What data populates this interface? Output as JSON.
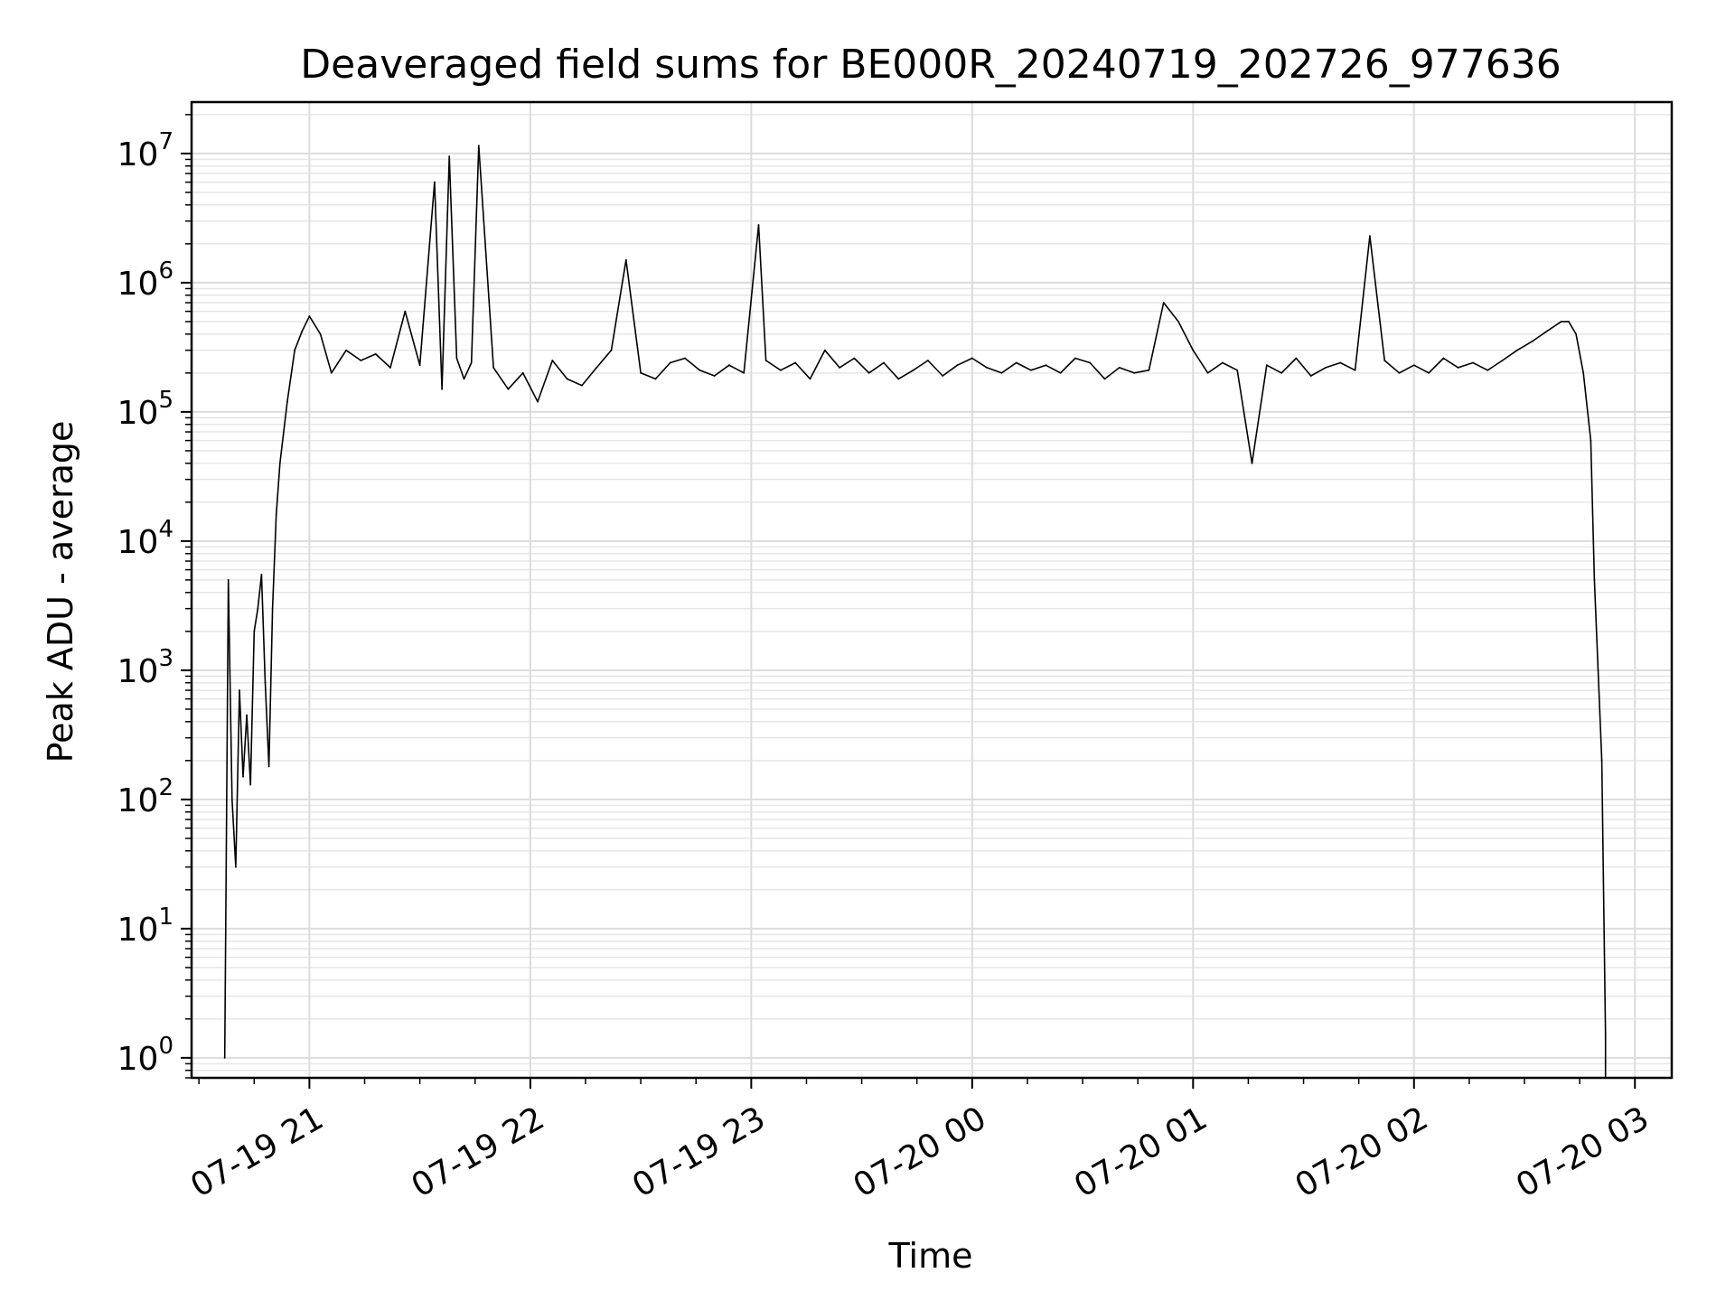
{
  "chart_data": {
    "type": "line",
    "title": "Deaveraged field sums for BE000R_20240719_202726_977636",
    "xlabel": "Time",
    "ylabel": "Peak ADU - average",
    "yscale": "log",
    "ylim": [
      0.7,
      25000000
    ],
    "xlim": [
      "2024-07-19 20:28",
      "2024-07-20 03:10"
    ],
    "grid": true,
    "x_ticks": [
      {
        "value": "2024-07-19 21:00",
        "label": "07-19 21"
      },
      {
        "value": "2024-07-19 22:00",
        "label": "07-19 22"
      },
      {
        "value": "2024-07-19 23:00",
        "label": "07-19 23"
      },
      {
        "value": "2024-07-20 00:00",
        "label": "07-20 00"
      },
      {
        "value": "2024-07-20 01:00",
        "label": "07-20 01"
      },
      {
        "value": "2024-07-20 02:00",
        "label": "07-20 02"
      },
      {
        "value": "2024-07-20 03:00",
        "label": "07-20 03"
      }
    ],
    "y_ticks": [
      {
        "value": 1,
        "base": "10",
        "exp": "0"
      },
      {
        "value": 10,
        "base": "10",
        "exp": "1"
      },
      {
        "value": 100,
        "base": "10",
        "exp": "2"
      },
      {
        "value": 1000,
        "base": "10",
        "exp": "3"
      },
      {
        "value": 10000,
        "base": "10",
        "exp": "4"
      },
      {
        "value": 100000,
        "base": "10",
        "exp": "5"
      },
      {
        "value": 1000000,
        "base": "10",
        "exp": "6"
      },
      {
        "value": 10000000,
        "base": "10",
        "exp": "7"
      }
    ],
    "series": [
      {
        "color": "#000000",
        "x": [
          "2024-07-19 20:37",
          "2024-07-19 20:38",
          "2024-07-19 20:39",
          "2024-07-19 20:40",
          "2024-07-19 20:41",
          "2024-07-19 20:42",
          "2024-07-19 20:43",
          "2024-07-19 20:44",
          "2024-07-19 20:45",
          "2024-07-19 20:46",
          "2024-07-19 20:47",
          "2024-07-19 20:48",
          "2024-07-19 20:49",
          "2024-07-19 20:50",
          "2024-07-19 20:51",
          "2024-07-19 20:52",
          "2024-07-19 20:54",
          "2024-07-19 20:56",
          "2024-07-19 20:58",
          "2024-07-19 21:00",
          "2024-07-19 21:03",
          "2024-07-19 21:06",
          "2024-07-19 21:10",
          "2024-07-19 21:14",
          "2024-07-19 21:18",
          "2024-07-19 21:22",
          "2024-07-19 21:26",
          "2024-07-19 21:30",
          "2024-07-19 21:34",
          "2024-07-19 21:36",
          "2024-07-19 21:38",
          "2024-07-19 21:40",
          "2024-07-19 21:42",
          "2024-07-19 21:44",
          "2024-07-19 21:46",
          "2024-07-19 21:50",
          "2024-07-19 21:54",
          "2024-07-19 21:58",
          "2024-07-19 22:02",
          "2024-07-19 22:06",
          "2024-07-19 22:10",
          "2024-07-19 22:14",
          "2024-07-19 22:18",
          "2024-07-19 22:22",
          "2024-07-19 22:26",
          "2024-07-19 22:30",
          "2024-07-19 22:34",
          "2024-07-19 22:38",
          "2024-07-19 22:42",
          "2024-07-19 22:46",
          "2024-07-19 22:50",
          "2024-07-19 22:54",
          "2024-07-19 22:58",
          "2024-07-19 23:02",
          "2024-07-19 23:04",
          "2024-07-19 23:08",
          "2024-07-19 23:12",
          "2024-07-19 23:16",
          "2024-07-19 23:20",
          "2024-07-19 23:24",
          "2024-07-19 23:28",
          "2024-07-19 23:32",
          "2024-07-19 23:36",
          "2024-07-19 23:40",
          "2024-07-19 23:44",
          "2024-07-19 23:48",
          "2024-07-19 23:52",
          "2024-07-19 23:56",
          "2024-07-20 00:00",
          "2024-07-20 00:04",
          "2024-07-20 00:08",
          "2024-07-20 00:12",
          "2024-07-20 00:16",
          "2024-07-20 00:20",
          "2024-07-20 00:24",
          "2024-07-20 00:28",
          "2024-07-20 00:32",
          "2024-07-20 00:36",
          "2024-07-20 00:40",
          "2024-07-20 00:44",
          "2024-07-20 00:48",
          "2024-07-20 00:52",
          "2024-07-20 00:56",
          "2024-07-20 01:00",
          "2024-07-20 01:04",
          "2024-07-20 01:08",
          "2024-07-20 01:12",
          "2024-07-20 01:16",
          "2024-07-20 01:20",
          "2024-07-20 01:24",
          "2024-07-20 01:28",
          "2024-07-20 01:32",
          "2024-07-20 01:36",
          "2024-07-20 01:40",
          "2024-07-20 01:44",
          "2024-07-20 01:48",
          "2024-07-20 01:52",
          "2024-07-20 01:56",
          "2024-07-20 02:00",
          "2024-07-20 02:04",
          "2024-07-20 02:08",
          "2024-07-20 02:12",
          "2024-07-20 02:16",
          "2024-07-20 02:20",
          "2024-07-20 02:24",
          "2024-07-20 02:28",
          "2024-07-20 02:32",
          "2024-07-20 02:36",
          "2024-07-20 02:40",
          "2024-07-20 02:42",
          "2024-07-20 02:44",
          "2024-07-20 02:46",
          "2024-07-20 02:48",
          "2024-07-20 02:49",
          "2024-07-20 02:50",
          "2024-07-20 02:51",
          "2024-07-20 02:52",
          "2024-07-20 02:52"
        ],
        "values": [
          1,
          5000,
          100,
          30,
          700,
          150,
          450,
          130,
          2000,
          3000,
          5500,
          800,
          180,
          3000,
          16000,
          40000,
          120000,
          300000,
          420000,
          550000,
          400000,
          200000,
          300000,
          250000,
          280000,
          220000,
          600000,
          230000,
          6000000,
          150000,
          9500000,
          260000,
          180000,
          240000,
          11500000,
          220000,
          150000,
          200000,
          120000,
          250000,
          180000,
          160000,
          220000,
          300000,
          1500000,
          200000,
          180000,
          240000,
          260000,
          210000,
          190000,
          230000,
          200000,
          2800000,
          250000,
          210000,
          240000,
          180000,
          300000,
          220000,
          260000,
          200000,
          240000,
          180000,
          210000,
          250000,
          190000,
          230000,
          260000,
          220000,
          200000,
          240000,
          210000,
          230000,
          200000,
          260000,
          240000,
          180000,
          220000,
          200000,
          210000,
          700000,
          500000,
          300000,
          200000,
          240000,
          210000,
          40000,
          230000,
          200000,
          260000,
          190000,
          220000,
          240000,
          210000,
          2300000,
          250000,
          200000,
          230000,
          200000,
          260000,
          220000,
          240000,
          210000,
          250000,
          300000,
          350000,
          420000,
          500000,
          500000,
          400000,
          200000,
          60000,
          5000,
          1000,
          200,
          1.5,
          0.7
        ]
      }
    ]
  }
}
